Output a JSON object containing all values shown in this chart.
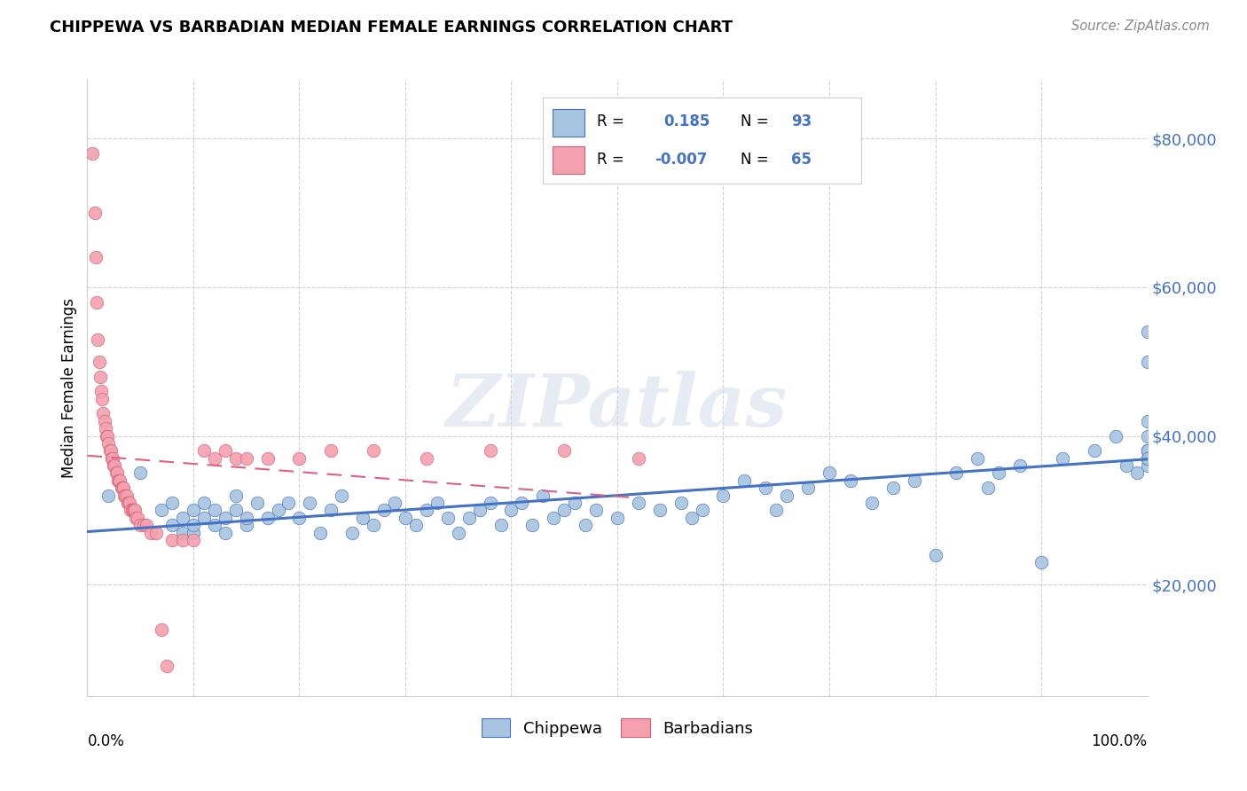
{
  "title": "CHIPPEWA VS BARBADIAN MEDIAN FEMALE EARNINGS CORRELATION CHART",
  "source": "Source: ZipAtlas.com",
  "ylabel": "Median Female Earnings",
  "ytick_labels": [
    "$20,000",
    "$40,000",
    "$60,000",
    "$80,000"
  ],
  "ytick_values": [
    20000,
    40000,
    60000,
    80000
  ],
  "ymin": 5000,
  "ymax": 88000,
  "xmin": 0.0,
  "xmax": 1.0,
  "legend_r_chippewa": "0.185",
  "legend_n_chippewa": "93",
  "legend_r_barbadian": "-0.007",
  "legend_n_barbadian": "65",
  "color_chippewa": "#a8c4e0",
  "color_barbadian": "#f4a0b0",
  "color_line_chippewa": "#4472c4",
  "color_line_barbadian": "#e06080",
  "color_accent": "#4472c4",
  "background_color": "#ffffff",
  "watermark_text": "ZIPatlas",
  "chippewa_x": [
    0.02,
    0.05,
    0.07,
    0.08,
    0.08,
    0.09,
    0.09,
    0.1,
    0.1,
    0.1,
    0.11,
    0.11,
    0.12,
    0.12,
    0.13,
    0.13,
    0.14,
    0.14,
    0.15,
    0.15,
    0.16,
    0.17,
    0.18,
    0.19,
    0.2,
    0.21,
    0.22,
    0.23,
    0.24,
    0.25,
    0.26,
    0.27,
    0.28,
    0.29,
    0.3,
    0.31,
    0.32,
    0.33,
    0.34,
    0.35,
    0.36,
    0.37,
    0.38,
    0.39,
    0.4,
    0.41,
    0.42,
    0.43,
    0.44,
    0.45,
    0.46,
    0.47,
    0.48,
    0.5,
    0.52,
    0.54,
    0.56,
    0.57,
    0.58,
    0.6,
    0.62,
    0.64,
    0.65,
    0.66,
    0.68,
    0.7,
    0.72,
    0.74,
    0.76,
    0.78,
    0.8,
    0.82,
    0.84,
    0.85,
    0.86,
    0.88,
    0.9,
    0.92,
    0.95,
    0.97,
    0.98,
    0.99,
    1.0,
    1.0,
    1.0,
    1.0,
    1.0,
    1.0,
    1.0,
    1.0,
    1.0,
    1.0,
    1.0
  ],
  "chippewa_y": [
    32000,
    35000,
    30000,
    28000,
    31000,
    27000,
    29000,
    27000,
    28000,
    30000,
    29000,
    31000,
    28000,
    30000,
    27000,
    29000,
    30000,
    32000,
    28000,
    29000,
    31000,
    29000,
    30000,
    31000,
    29000,
    31000,
    27000,
    30000,
    32000,
    27000,
    29000,
    28000,
    30000,
    31000,
    29000,
    28000,
    30000,
    31000,
    29000,
    27000,
    29000,
    30000,
    31000,
    28000,
    30000,
    31000,
    28000,
    32000,
    29000,
    30000,
    31000,
    28000,
    30000,
    29000,
    31000,
    30000,
    31000,
    29000,
    30000,
    32000,
    34000,
    33000,
    30000,
    32000,
    33000,
    35000,
    34000,
    31000,
    33000,
    34000,
    24000,
    35000,
    37000,
    33000,
    35000,
    36000,
    23000,
    37000,
    38000,
    40000,
    36000,
    35000,
    37000,
    38000,
    36000,
    37000,
    38000,
    54000,
    50000,
    40000,
    42000,
    38000,
    37000
  ],
  "barbadian_x": [
    0.005,
    0.007,
    0.008,
    0.009,
    0.01,
    0.011,
    0.012,
    0.013,
    0.014,
    0.015,
    0.016,
    0.017,
    0.018,
    0.019,
    0.02,
    0.021,
    0.022,
    0.023,
    0.024,
    0.025,
    0.026,
    0.027,
    0.028,
    0.029,
    0.03,
    0.031,
    0.032,
    0.033,
    0.034,
    0.035,
    0.036,
    0.037,
    0.038,
    0.039,
    0.04,
    0.041,
    0.042,
    0.043,
    0.044,
    0.045,
    0.046,
    0.047,
    0.05,
    0.053,
    0.056,
    0.06,
    0.065,
    0.07,
    0.075,
    0.08,
    0.09,
    0.1,
    0.11,
    0.12,
    0.13,
    0.14,
    0.15,
    0.17,
    0.2,
    0.23,
    0.27,
    0.32,
    0.38,
    0.45,
    0.52
  ],
  "barbadian_y": [
    78000,
    70000,
    64000,
    58000,
    53000,
    50000,
    48000,
    46000,
    45000,
    43000,
    42000,
    41000,
    40000,
    40000,
    39000,
    38000,
    38000,
    37000,
    37000,
    36000,
    36000,
    35000,
    35000,
    34000,
    34000,
    34000,
    33000,
    33000,
    33000,
    32000,
    32000,
    32000,
    31000,
    31000,
    31000,
    30000,
    30000,
    30000,
    30000,
    30000,
    29000,
    29000,
    28000,
    28000,
    28000,
    27000,
    27000,
    14000,
    9000,
    26000,
    26000,
    26000,
    38000,
    37000,
    38000,
    37000,
    37000,
    37000,
    37000,
    38000,
    38000,
    37000,
    38000,
    38000,
    37000
  ]
}
